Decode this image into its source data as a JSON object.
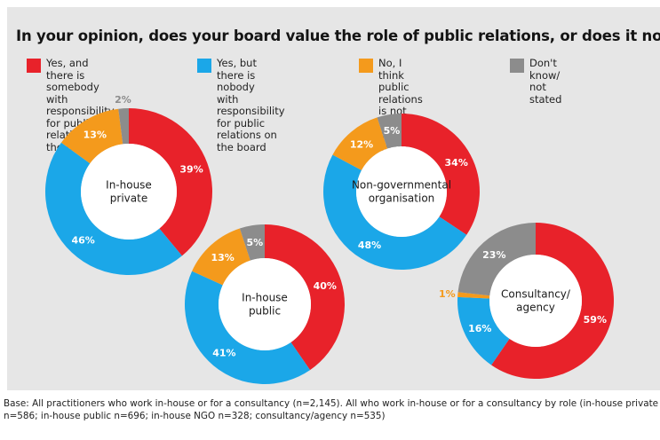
{
  "title": "In your opinion, does your board value the role of public relations, or does it not?",
  "legend": [
    {
      "label": "Yes, and there is somebody\nwith responsibility for public\nrelations on the board",
      "color": "#e8222a"
    },
    {
      "label": "Yes, but there is nobody\nwith responsibility for public\nrelations on the board",
      "color": "#1ba7e8"
    },
    {
      "label": "No, I think public relations\nis not valued by my board",
      "color": "#f49a1c"
    },
    {
      "label": "Don't know/\nnot stated",
      "color": "#8c8c8c"
    }
  ],
  "chart_data": [
    {
      "type": "pie",
      "title": "In-house\nprivate",
      "values": [
        39,
        46,
        13,
        2
      ],
      "labels": [
        "39%",
        "46%",
        "13%",
        "2%"
      ]
    },
    {
      "type": "pie",
      "title": "In-house\npublic",
      "values": [
        40,
        41,
        13,
        5
      ],
      "labels": [
        "40%",
        "41%",
        "13%",
        "5%"
      ]
    },
    {
      "type": "pie",
      "title": "Non-governmental\norganisation",
      "values": [
        34,
        48,
        12,
        5
      ],
      "labels": [
        "34%",
        "48%",
        "12%",
        "5%"
      ]
    },
    {
      "type": "pie",
      "title": "Consultancy/\nagency",
      "values": [
        59,
        16,
        1,
        23
      ],
      "labels": [
        "59%",
        "16%",
        "1%",
        "23%"
      ]
    }
  ],
  "footnote": "Base: All practitioners who work in-house or for a consultancy (n=2,145). All who work in-house or for a consultancy by role (in-house private n=586; in-house public n=696; in-house NGO n=328; consultancy/agency n=535)"
}
